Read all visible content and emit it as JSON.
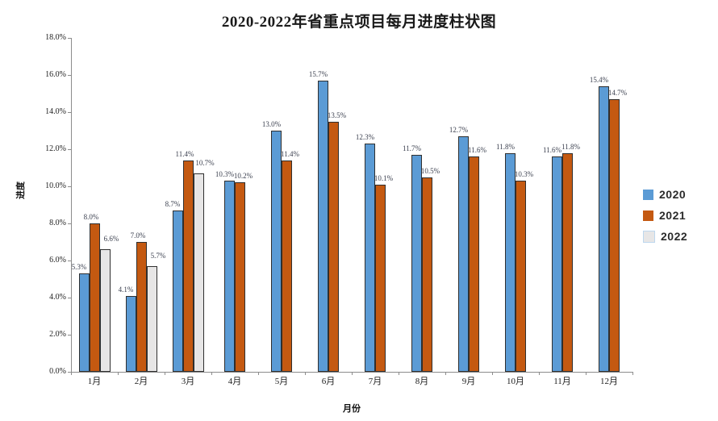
{
  "chart_data": {
    "type": "bar",
    "title": "2020-2022年省重点项目每月进度柱状图",
    "xlabel": "月份",
    "ylabel": "进度",
    "ylim": [
      0,
      18
    ],
    "y_tick_step": 2,
    "y_tick_labels": [
      "0.0%",
      "2.0%",
      "4.0%",
      "6.0%",
      "8.0%",
      "10.0%",
      "12.0%",
      "14.0%",
      "16.0%",
      "18.0%"
    ],
    "categories": [
      "1月",
      "2月",
      "3月",
      "4月",
      "5月",
      "6月",
      "7月",
      "8月",
      "9月",
      "10月",
      "11月",
      "12月"
    ],
    "series": [
      {
        "name": "2020",
        "color": "#5B9BD5",
        "values": [
          5.3,
          4.1,
          8.7,
          10.3,
          13.0,
          15.7,
          12.3,
          11.7,
          12.7,
          11.8,
          11.6,
          15.4
        ]
      },
      {
        "name": "2021",
        "color": "#C45911",
        "values": [
          8.0,
          7.0,
          11.4,
          10.2,
          11.4,
          13.5,
          10.1,
          10.5,
          11.6,
          10.3,
          11.8,
          14.7
        ]
      },
      {
        "name": "2022",
        "color": "#E7E6E6",
        "legend_border": "#BDD7EE",
        "values": [
          6.6,
          5.7,
          10.7,
          null,
          null,
          null,
          null,
          null,
          null,
          null,
          null,
          null
        ]
      }
    ],
    "legend_position": "right",
    "grid": false,
    "value_suffix": "%",
    "bar_border_color": "#2f2f2f",
    "axis_color": "#8c8c8c",
    "label_color": "#3a3f4e"
  }
}
